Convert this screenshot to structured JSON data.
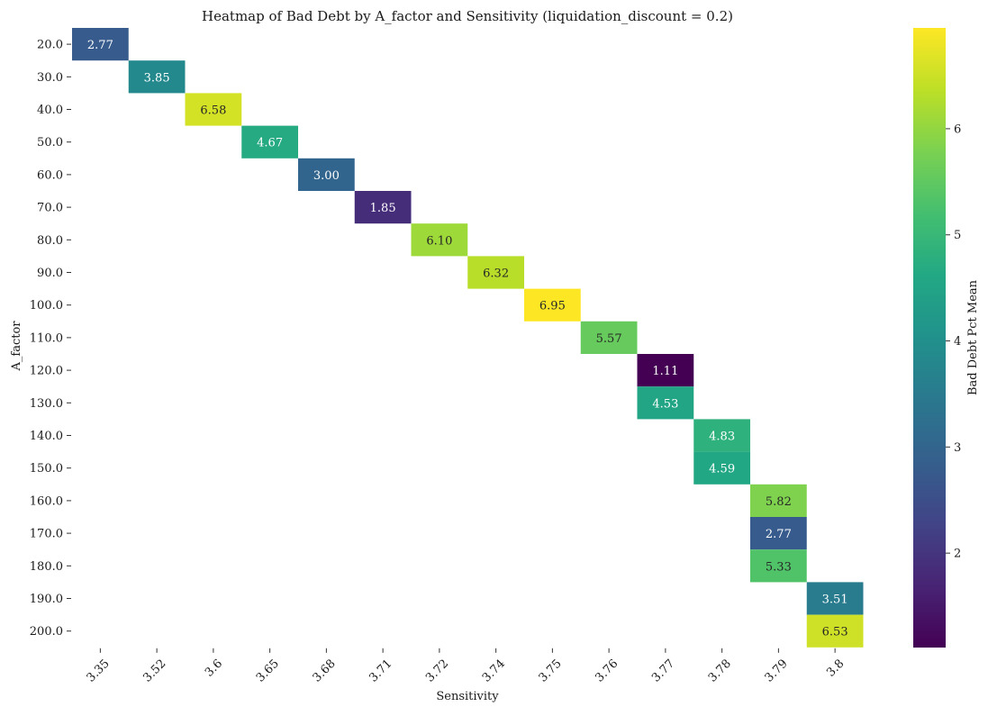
{
  "chart_data": {
    "type": "heatmap",
    "title": "Heatmap of Bad Debt by A_factor and Sensitivity (liquidation_discount = 0.2)",
    "xlabel": "Sensitivity",
    "ylabel": "A_factor",
    "x_categories": [
      "3.35",
      "3.52",
      "3.6",
      "3.65",
      "3.68",
      "3.71",
      "3.72",
      "3.74",
      "3.75",
      "3.76",
      "3.77",
      "3.78",
      "3.79",
      "3.8"
    ],
    "y_categories": [
      "20.0",
      "30.0",
      "40.0",
      "50.0",
      "60.0",
      "70.0",
      "80.0",
      "90.0",
      "100.0",
      "110.0",
      "120.0",
      "130.0",
      "140.0",
      "150.0",
      "160.0",
      "170.0",
      "180.0",
      "190.0",
      "200.0"
    ],
    "cells": [
      {
        "a_factor": "20.0",
        "sensitivity": "3.35",
        "value": 2.77
      },
      {
        "a_factor": "30.0",
        "sensitivity": "3.52",
        "value": 3.85
      },
      {
        "a_factor": "40.0",
        "sensitivity": "3.6",
        "value": 6.58
      },
      {
        "a_factor": "50.0",
        "sensitivity": "3.65",
        "value": 4.67
      },
      {
        "a_factor": "60.0",
        "sensitivity": "3.68",
        "value": 3.0
      },
      {
        "a_factor": "70.0",
        "sensitivity": "3.71",
        "value": 1.85
      },
      {
        "a_factor": "80.0",
        "sensitivity": "3.72",
        "value": 6.1
      },
      {
        "a_factor": "90.0",
        "sensitivity": "3.74",
        "value": 6.32
      },
      {
        "a_factor": "100.0",
        "sensitivity": "3.75",
        "value": 6.95
      },
      {
        "a_factor": "110.0",
        "sensitivity": "3.76",
        "value": 5.57
      },
      {
        "a_factor": "120.0",
        "sensitivity": "3.77",
        "value": 1.11
      },
      {
        "a_factor": "130.0",
        "sensitivity": "3.77",
        "value": 4.53
      },
      {
        "a_factor": "140.0",
        "sensitivity": "3.78",
        "value": 4.83
      },
      {
        "a_factor": "150.0",
        "sensitivity": "3.78",
        "value": 4.59
      },
      {
        "a_factor": "160.0",
        "sensitivity": "3.79",
        "value": 5.82
      },
      {
        "a_factor": "170.0",
        "sensitivity": "3.79",
        "value": 2.77
      },
      {
        "a_factor": "180.0",
        "sensitivity": "3.79",
        "value": 5.33
      },
      {
        "a_factor": "190.0",
        "sensitivity": "3.8",
        "value": 3.51
      },
      {
        "a_factor": "200.0",
        "sensitivity": "3.8",
        "value": 6.53
      }
    ],
    "colormap": "viridis",
    "vmin": 1.11,
    "vmax": 6.95,
    "colorbar": {
      "label": "Bad Debt Pct Mean",
      "ticks": [
        2,
        3,
        4,
        5,
        6
      ]
    },
    "grid": false,
    "legend": "colorbar on right"
  }
}
